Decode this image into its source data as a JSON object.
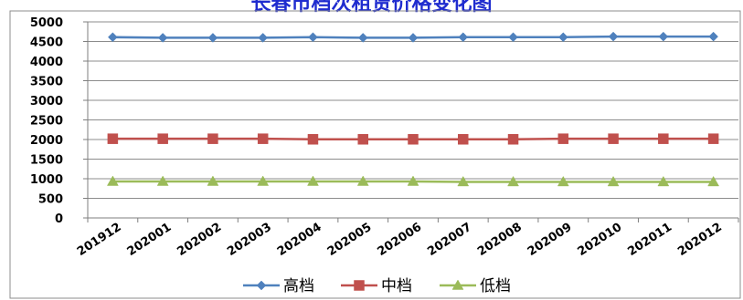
{
  "chart_data": {
    "type": "line",
    "title": "长春市档次租赁价格变化图",
    "xlabel": "",
    "ylabel": "",
    "categories": [
      "201912",
      "202001",
      "202002",
      "202003",
      "202004",
      "202005",
      "202006",
      "202007",
      "202008",
      "202009",
      "202010",
      "202011",
      "202012"
    ],
    "ylim": [
      0,
      5000
    ],
    "yticks": [
      0,
      500,
      1000,
      1500,
      2000,
      2500,
      3000,
      3500,
      4000,
      4500,
      5000
    ],
    "grid": true,
    "legend_position": "bottom",
    "series": [
      {
        "name": "高档",
        "color": "#4f81bd",
        "marker": "diamond",
        "values": [
          4610,
          4595,
          4595,
          4595,
          4610,
          4595,
          4595,
          4610,
          4610,
          4610,
          4625,
          4625,
          4625
        ]
      },
      {
        "name": "中档",
        "color": "#c0504d",
        "marker": "square",
        "values": [
          2020,
          2020,
          2020,
          2020,
          2005,
          2005,
          2005,
          2005,
          2005,
          2020,
          2020,
          2020,
          2020
        ]
      },
      {
        "name": "低档",
        "color": "#9bbb59",
        "marker": "triangle",
        "values": [
          930,
          930,
          930,
          930,
          930,
          930,
          930,
          920,
          920,
          920,
          920,
          920,
          920
        ]
      }
    ]
  }
}
